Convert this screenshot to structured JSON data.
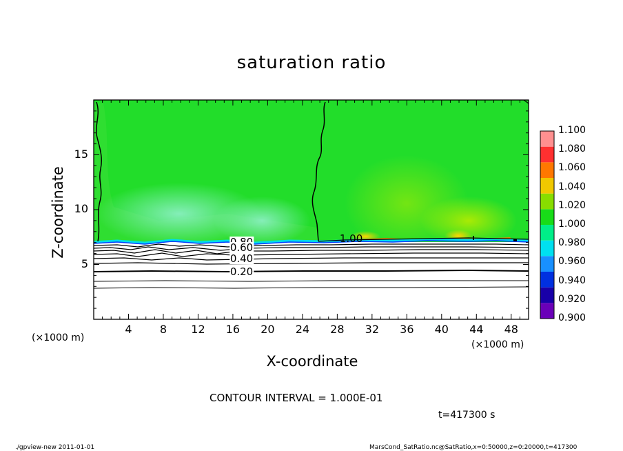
{
  "chart_data": {
    "type": "heatmap",
    "title": "saturation ratio",
    "xlabel": "X-coordinate",
    "ylabel": "Z-coordinate",
    "x_unit_label": "(×1000 m)",
    "xlim": [
      0,
      50
    ],
    "ylim": [
      0,
      20
    ],
    "x_ticks": [
      4,
      8,
      12,
      16,
      20,
      24,
      28,
      32,
      36,
      40,
      44,
      48
    ],
    "y_ticks": [
      5,
      10,
      15
    ],
    "colorbar": {
      "levels": [
        0.9,
        0.92,
        0.94,
        0.96,
        0.98,
        1.0,
        1.02,
        1.04,
        1.06,
        1.08,
        1.1
      ],
      "labels": [
        "0.900",
        "0.920",
        "0.940",
        "0.960",
        "0.980",
        "1.000",
        "1.020",
        "1.040",
        "1.060",
        "1.080",
        "1.100"
      ],
      "colors": [
        "#6a00b8",
        "#1800a8",
        "#0030e0",
        "#1890ff",
        "#00e0f0",
        "#00ee88",
        "#18dc18",
        "#88dd00",
        "#f0c800",
        "#ff7800",
        "#ff3030",
        "#ff9090"
      ]
    },
    "contour_interval": "1.000E-01",
    "contour_labels": [
      {
        "text": "1.00",
        "x": 29.6,
        "z": 7.3
      },
      {
        "text": "0.80",
        "x": 17.0,
        "z": 7.0
      },
      {
        "text": "0.60",
        "x": 17.0,
        "z": 6.5
      },
      {
        "text": "0.40",
        "x": 17.0,
        "z": 5.5
      },
      {
        "text": "0.20",
        "x": 17.0,
        "z": 4.3
      }
    ],
    "condensation_level_z": 7.0
  },
  "footer": {
    "interval_text": "CONTOUR INTERVAL = 1.000E-01",
    "time_text": "t=417300 s",
    "left_text": "./gpview-new   2011-01-01",
    "right_text": "MarsCond_SatRatio.nc@SatRatio,x=0:50000,z=0:20000,t=417300"
  },
  "colors": {
    "cloud_green": "#22dd2a",
    "light_green": "#45e23c",
    "cyan_band": "#00dde8",
    "blue_line": "#0040ff",
    "warm_yellow": "#e8d800",
    "warm_orange": "#ff7a00"
  }
}
